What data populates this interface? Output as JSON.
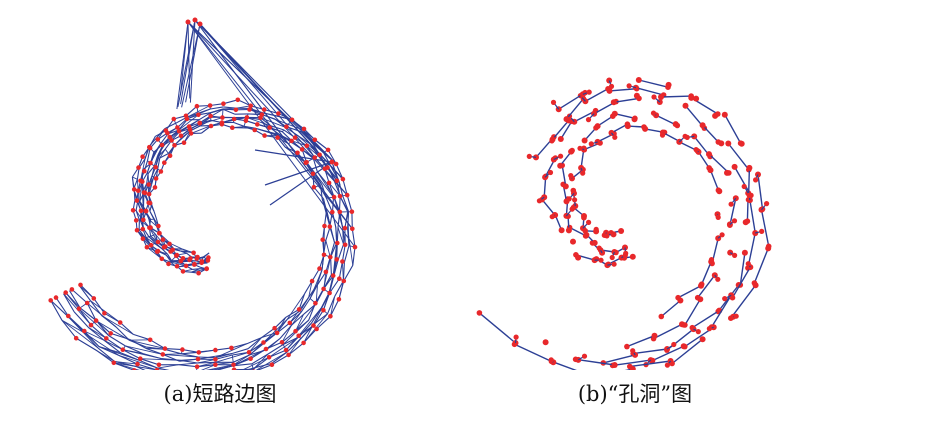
{
  "figure": {
    "panel_a": {
      "caption": "(a)短路边图",
      "edge_color": "#2c3f95",
      "node_color": "#e8282b"
    },
    "panel_b": {
      "caption": "(b)“孔洞”图",
      "edge_color": "#2c3f95",
      "node_color": "#e8282b"
    }
  }
}
